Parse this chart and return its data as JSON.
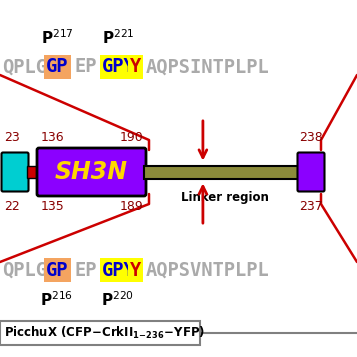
{
  "bg_color": "#ffffff",
  "sh3n_color": "#8B00FF",
  "sh3n_text": "SH3N",
  "sh3n_text_color": "#FFD700",
  "linker_color": "#8B8B3A",
  "linker_text": "Linker region",
  "cfp_color": "#00CED1",
  "yfp_color": "#8B00FF",
  "red_bar_color": "#CC0000",
  "gp_bg": "#F4A460",
  "gpy_bg": "#FFFF00",
  "gp_text_color": "#0000CC",
  "gpy_gp_color": "#0000CC",
  "gpy_y_color": "#CC0000",
  "seq_color": "#AAAAAA",
  "number_color": "#880000",
  "arrow_color": "#CC0000",
  "top_seq_before": "QPLG",
  "top_gp": "GP",
  "top_ep": "EP",
  "top_gp2": "GP",
  "top_y": "Y",
  "top_seq_after": "AQPSINTPLPL",
  "bot_seq_after": "AQPSVNTPLPL",
  "p217": "217",
  "p221": "221",
  "p216": "216",
  "p220": "220",
  "num_top": [
    "23",
    "136",
    "190",
    "238"
  ],
  "num_bot": [
    "22",
    "135",
    "189",
    "237"
  ],
  "label_text": "PicchuX (CFP-CrkII",
  "label_sub": "1-236",
  "label_end": "-YFP)"
}
